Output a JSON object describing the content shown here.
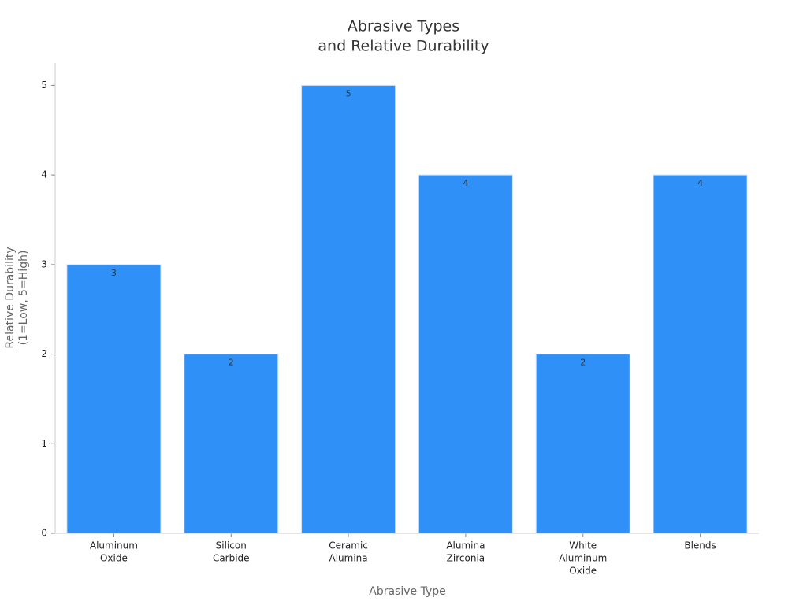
{
  "chart_data": {
    "type": "bar",
    "title": [
      "Abrasive Types",
      "and Relative Durability"
    ],
    "x_label": "Abrasive Type",
    "y_label": [
      "Relative Durability",
      "(1=Low, 5=High)"
    ],
    "categories": [
      [
        "Aluminum",
        "Oxide"
      ],
      [
        "Silicon",
        "Carbide"
      ],
      [
        "Ceramic",
        "Alumina"
      ],
      [
        "Alumina",
        "Zirconia"
      ],
      [
        "White",
        "Aluminum",
        "Oxide"
      ],
      [
        "Blends"
      ]
    ],
    "values": [
      3,
      2,
      5,
      4,
      2,
      4
    ],
    "color": "#2f91f7",
    "ylim": [
      0,
      5.25
    ],
    "yticks": [
      0,
      1,
      2,
      3,
      4,
      5
    ],
    "grid": false
  }
}
